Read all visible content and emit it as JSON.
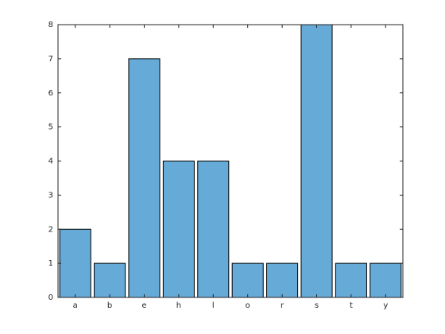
{
  "chart_data": {
    "type": "bar",
    "categories": [
      "a",
      "b",
      "e",
      "h",
      "l",
      "o",
      "r",
      "s",
      "t",
      "y"
    ],
    "values": [
      2,
      1,
      7,
      4,
      4,
      1,
      1,
      8,
      1,
      1
    ],
    "color": "#66aad8",
    "ylim": [
      0,
      8
    ],
    "yticks": [
      0,
      1,
      2,
      3,
      4,
      5,
      6,
      7,
      8
    ]
  }
}
